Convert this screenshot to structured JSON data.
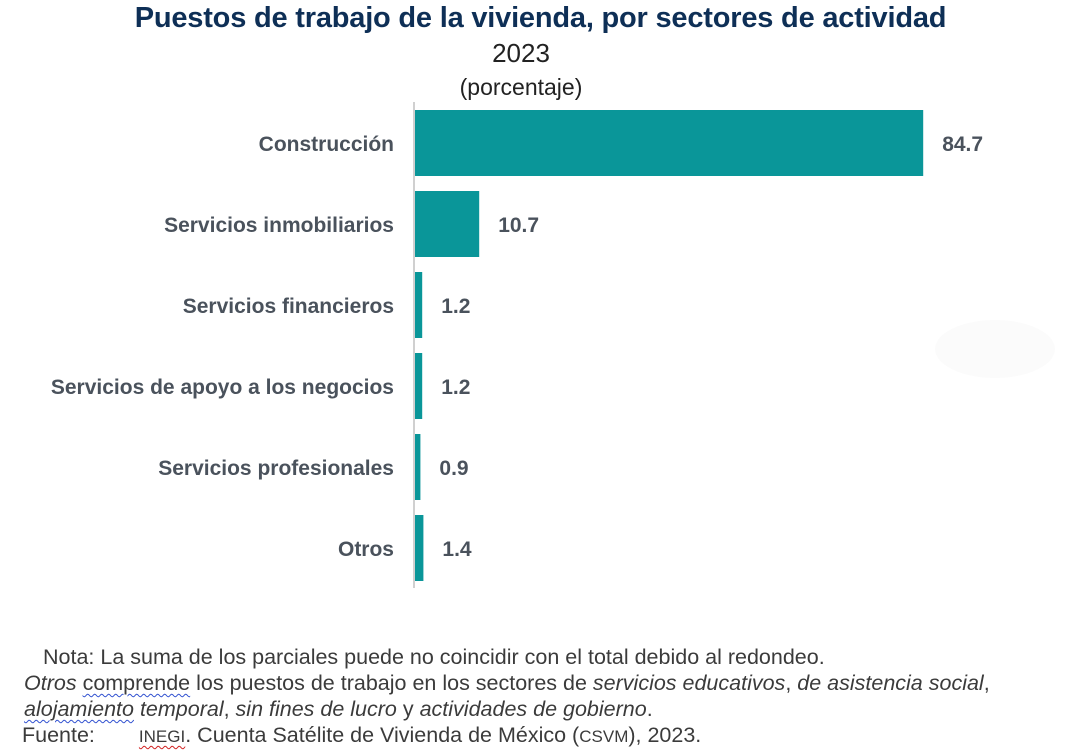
{
  "chart_data": {
    "type": "bar",
    "orientation": "horizontal",
    "title": "Puestos de trabajo de la vivienda, por sectores de actividad",
    "subtitle": "2023",
    "unit_label": "(porcentaje)",
    "categories": [
      "Construcción",
      "Servicios inmobiliarios",
      "Servicios financieros",
      "Servicios de apoyo a los negocios",
      "Servicios profesionales",
      "Otros"
    ],
    "values": [
      84.7,
      10.7,
      1.2,
      1.2,
      0.9,
      1.4
    ],
    "value_labels": [
      "84.7",
      "10.7",
      "1.2",
      "1.2",
      "0.9",
      "1.4"
    ],
    "xlabel": "",
    "ylabel": "",
    "xlim": [
      0,
      100
    ],
    "grid": false,
    "legend": "none",
    "bar_color": "#0a9699"
  },
  "notes": {
    "line1": "Nota: La suma de los parciales puede no coincidir con el total debido al redondeo.",
    "line2": {
      "otros": "Otros",
      "comprende": "comprende",
      "text_a": " los puestos de trabajo en los sectores de ",
      "educativos": "servicios educativos",
      "comma1": ", ",
      "asistencia": "de asistencia social",
      "comma2": ","
    },
    "line3": {
      "alojamiento": "alojamiento",
      "temporal": " temporal",
      "comma": ", ",
      "lucro": "sin fines de lucro",
      "y": " y ",
      "gobierno": "actividades de gobierno",
      "period": "."
    },
    "source": {
      "label": "Fuente:",
      "inegi": "INEGI",
      "text_a": ". Cuenta Satélite de Vivienda de México (",
      "csvm": "CSVM",
      "text_b": "), 2023."
    }
  },
  "colors": {
    "title": "#0e2f56",
    "bar": "#0a9699",
    "labels": "#4a525c",
    "axis": "#d0d0d0"
  }
}
